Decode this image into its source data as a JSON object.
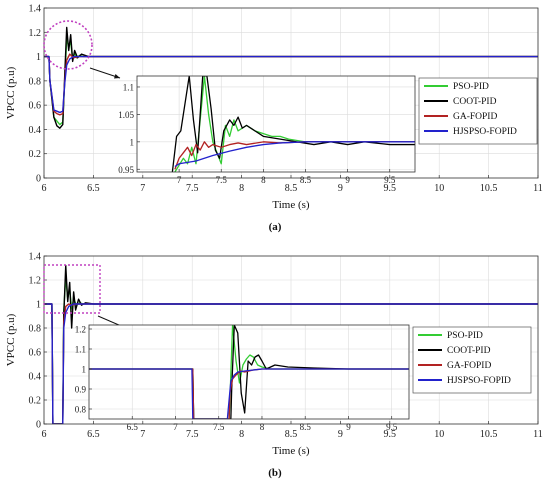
{
  "chart_data": [
    {
      "id": "a",
      "type": "line",
      "caption": "(a)",
      "xlabel": "Time (s)",
      "ylabel": "VPCC (p.u)",
      "xlim": [
        6,
        11
      ],
      "ylim": [
        0,
        1.4
      ],
      "xticks": [
        6,
        6.5,
        7,
        7.5,
        8,
        8.5,
        9,
        9.5,
        10,
        10.5,
        11
      ],
      "yticks": [
        0,
        0.2,
        0.4,
        0.6,
        0.8,
        1,
        1.2,
        1.4
      ],
      "grid": true,
      "colors": {
        "PSO-PID": "#33cc33",
        "COOT-PID": "#000000",
        "GA-FOPID": "#b22222",
        "HJSPSO-FOPID": "#2222cc"
      },
      "series": [
        {
          "name": "PSO-PID",
          "x": [
            6,
            6.05,
            6.06,
            6.1,
            6.13,
            6.16,
            6.19,
            6.21,
            6.23,
            6.25,
            6.27,
            6.29,
            6.31,
            6.33,
            6.36,
            6.4,
            6.5,
            6.7,
            7,
            11
          ],
          "y": [
            1,
            1,
            0.8,
            0.5,
            0.47,
            0.44,
            0.46,
            0.8,
            1.15,
            1.08,
            1.12,
            0.98,
            1.03,
            0.99,
            1.01,
            1.0,
            1.0,
            1.0,
            1.0,
            1.0
          ]
        },
        {
          "name": "COOT-PID",
          "x": [
            6,
            6.05,
            6.06,
            6.1,
            6.13,
            6.16,
            6.19,
            6.21,
            6.23,
            6.25,
            6.27,
            6.29,
            6.31,
            6.34,
            6.38,
            6.45,
            6.6,
            7,
            11
          ],
          "y": [
            1,
            1,
            0.8,
            0.5,
            0.43,
            0.41,
            0.44,
            0.85,
            1.24,
            1.05,
            1.18,
            0.96,
            1.05,
            0.99,
            1.02,
            1.0,
            1.0,
            1.0,
            1.0
          ]
        },
        {
          "name": "GA-FOPID",
          "x": [
            6,
            6.05,
            6.06,
            6.1,
            6.13,
            6.16,
            6.19,
            6.21,
            6.23,
            6.26,
            6.3,
            6.35,
            6.45,
            7,
            11
          ],
          "y": [
            1,
            1,
            0.8,
            0.55,
            0.53,
            0.52,
            0.53,
            0.8,
            0.97,
            1.02,
            0.99,
            1.0,
            1.0,
            1.0,
            1.0
          ]
        },
        {
          "name": "HJSPSO-FOPID",
          "x": [
            6,
            6.05,
            6.06,
            6.1,
            6.13,
            6.16,
            6.19,
            6.21,
            6.23,
            6.26,
            6.3,
            6.4,
            6.6,
            7,
            11
          ],
          "y": [
            1,
            1,
            0.8,
            0.56,
            0.55,
            0.54,
            0.55,
            0.78,
            0.93,
            0.98,
            1.0,
            1.0,
            1.0,
            1.0,
            1.0
          ]
        }
      ],
      "inset": {
        "xlim": [
          6.5,
          9.8
        ],
        "ylim": [
          0.945,
          1.12
        ],
        "xticks": [
          7,
          7.5,
          8,
          8.5,
          9,
          9.5
        ],
        "yticks": [
          0.95,
          1,
          1.05,
          1.1
        ],
        "series": [
          {
            "name": "PSO-PID",
            "x": [
              6.95,
              7.05,
              7.1,
              7.15,
              7.2,
              7.25,
              7.3,
              7.35,
              7.4,
              7.5,
              7.55,
              7.6,
              7.65,
              7.7,
              7.8,
              7.9,
              8.0,
              8.1,
              8.2,
              8.3,
              8.5,
              8.7,
              9.0,
              9.3,
              9.8
            ],
            "y": [
              0.945,
              0.97,
              0.96,
              0.99,
              0.96,
              1.04,
              1.12,
              1.05,
              1.0,
              0.96,
              1.03,
              1.01,
              1.04,
              1.02,
              1.03,
              1.02,
              1.015,
              1.01,
              1.01,
              1.005,
              1.0,
              1.0,
              1.0,
              1.0,
              1.0
            ]
          },
          {
            "name": "COOT-PID",
            "x": [
              6.92,
              6.97,
              7.02,
              7.07,
              7.12,
              7.17,
              7.22,
              7.28,
              7.33,
              7.38,
              7.43,
              7.48,
              7.53,
              7.6,
              7.65,
              7.7,
              7.75,
              7.8,
              7.9,
              8.0,
              8.2,
              8.4,
              8.6,
              8.8,
              9.0,
              9.2,
              9.5,
              9.8
            ],
            "y": [
              0.945,
              1.01,
              1.02,
              1.07,
              1.12,
              1.04,
              0.98,
              1.12,
              1.12,
              1.06,
              0.985,
              0.97,
              1.02,
              1.04,
              1.03,
              1.045,
              1.025,
              1.03,
              1.02,
              1.01,
              1.005,
              1.0,
              0.995,
              1.0,
              0.995,
              1.0,
              0.995,
              0.995
            ]
          },
          {
            "name": "GA-FOPID",
            "x": [
              6.95,
              7.0,
              7.05,
              7.1,
              7.15,
              7.2,
              7.25,
              7.3,
              7.35,
              7.4,
              7.5,
              7.6,
              7.7,
              7.8,
              8.0,
              8.2,
              8.5,
              9.0,
              9.5,
              9.8
            ],
            "y": [
              0.95,
              0.97,
              0.98,
              0.99,
              0.975,
              0.995,
              0.985,
              1.0,
              0.99,
              0.995,
              0.99,
              0.995,
              0.998,
              0.995,
              1.0,
              0.998,
              1.0,
              1.0,
              1.0,
              1.0
            ]
          },
          {
            "name": "HJSPSO-FOPID",
            "x": [
              6.95,
              7.0,
              7.2,
              7.4,
              7.6,
              7.8,
              8.0,
              8.2,
              8.5,
              9.0,
              9.5,
              9.8
            ],
            "y": [
              0.955,
              0.96,
              0.965,
              0.975,
              0.983,
              0.99,
              0.995,
              0.998,
              1.0,
              1.0,
              1.0,
              1.0
            ]
          }
        ]
      }
    },
    {
      "id": "b",
      "type": "line",
      "caption": "(b)",
      "xlabel": "Time (s)",
      "ylabel": "VPCC (p.u)",
      "xlim": [
        6,
        11
      ],
      "ylim": [
        0,
        1.4
      ],
      "xticks": [
        6,
        6.5,
        7,
        7.5,
        8,
        8.5,
        9,
        9.5,
        10,
        10.5,
        11
      ],
      "yticks": [
        0,
        0.2,
        0.4,
        0.6,
        0.8,
        1,
        1.2,
        1.4
      ],
      "grid": true,
      "colors": {
        "PSO-PID": "#33cc33",
        "COOT-PID": "#000000",
        "GA-FOPID": "#b22222",
        "HJSPSO-FOPID": "#2222cc"
      },
      "series": [
        {
          "name": "PSO-PID",
          "x": [
            6,
            6.08,
            6.09,
            6.19,
            6.2,
            6.22,
            6.24,
            6.26,
            6.28,
            6.3,
            6.33,
            6.36,
            6.4,
            6.5,
            7,
            11
          ],
          "y": [
            1,
            1,
            0,
            0,
            0.95,
            1.22,
            1.05,
            1.12,
            0.96,
            1.04,
            0.99,
            1.01,
            1.0,
            1.0,
            1.0,
            1.0
          ]
        },
        {
          "name": "COOT-PID",
          "x": [
            6,
            6.08,
            6.09,
            6.19,
            6.2,
            6.22,
            6.24,
            6.26,
            6.28,
            6.3,
            6.32,
            6.35,
            6.38,
            6.42,
            6.5,
            7,
            11
          ],
          "y": [
            1,
            1,
            0,
            0,
            0.9,
            1.32,
            1.02,
            1.18,
            0.8,
            1.1,
            0.95,
            1.04,
            0.99,
            1.01,
            1.0,
            1.0,
            1.0
          ]
        },
        {
          "name": "GA-FOPID",
          "x": [
            6,
            6.08,
            6.09,
            6.19,
            6.2,
            6.22,
            6.25,
            6.28,
            6.32,
            6.4,
            7,
            11
          ],
          "y": [
            1,
            1,
            0,
            0,
            0.85,
            0.98,
            1.0,
            0.99,
            1.0,
            1.0,
            1.0,
            1.0
          ]
        },
        {
          "name": "HJSPSO-FOPID",
          "x": [
            6,
            6.08,
            6.09,
            6.19,
            6.2,
            6.22,
            6.25,
            6.3,
            6.4,
            7,
            11
          ],
          "y": [
            1,
            1,
            0,
            0,
            0.8,
            0.93,
            0.98,
            1.0,
            1.0,
            1.0,
            1.0
          ]
        }
      ],
      "inset": {
        "xlim": [
          6.0,
          9.7
        ],
        "ylim": [
          0.75,
          1.22
        ],
        "xticks": [
          6.5,
          7,
          7.5,
          8,
          8.5,
          9,
          9.5
        ],
        "yticks": [
          0.8,
          0.9,
          1,
          1.1,
          1.2
        ],
        "series": [
          {
            "name": "PSO-PID",
            "x": [
              6.0,
              7.2,
              7.21,
              7.62,
              7.63,
              7.66,
              7.7,
              7.74,
              7.78,
              7.82,
              7.86,
              7.9,
              7.95,
              8.0,
              8.1,
              8.3,
              8.6,
              9.0,
              9.7
            ],
            "y": [
              1.0,
              1.0,
              0.75,
              0.75,
              0.85,
              1.22,
              1.04,
              0.93,
              1.02,
              1.05,
              1.07,
              1.06,
              1.02,
              1.01,
              1.0,
              1.0,
              1.0,
              1.0,
              1.0
            ]
          },
          {
            "name": "COOT-PID",
            "x": [
              6.0,
              7.2,
              7.21,
              7.64,
              7.65,
              7.68,
              7.72,
              7.76,
              7.8,
              7.84,
              7.88,
              7.92,
              7.96,
              8.0,
              8.05,
              8.15,
              8.3,
              8.6,
              9.0,
              9.7
            ],
            "y": [
              1.0,
              1.0,
              0.75,
              0.75,
              0.9,
              1.22,
              1.18,
              0.88,
              0.78,
              1.04,
              1.02,
              1.06,
              1.07,
              1.04,
              1.0,
              1.02,
              1.01,
              1.005,
              1.0,
              1.0
            ]
          },
          {
            "name": "GA-FOPID",
            "x": [
              6.0,
              7.2,
              7.21,
              7.62,
              7.63,
              7.66,
              7.7,
              7.75,
              7.8,
              7.9,
              8.0,
              8.2,
              8.5,
              9.0,
              9.7
            ],
            "y": [
              1.0,
              1.0,
              0.75,
              0.75,
              0.88,
              0.95,
              0.97,
              0.99,
              0.985,
              0.995,
              1.0,
              1.0,
              1.0,
              1.0,
              1.0
            ]
          },
          {
            "name": "HJSPSO-FOPID",
            "x": [
              6.0,
              7.19,
              7.2,
              7.6,
              7.61,
              7.64,
              7.68,
              7.72,
              7.8,
              7.9,
              8.0,
              8.2,
              8.5,
              9.0,
              9.7
            ],
            "y": [
              1.0,
              1.0,
              0.75,
              0.75,
              0.8,
              0.94,
              0.97,
              0.985,
              0.99,
              0.995,
              1.0,
              1.0,
              1.0,
              1.0,
              1.0
            ]
          }
        ]
      }
    }
  ]
}
